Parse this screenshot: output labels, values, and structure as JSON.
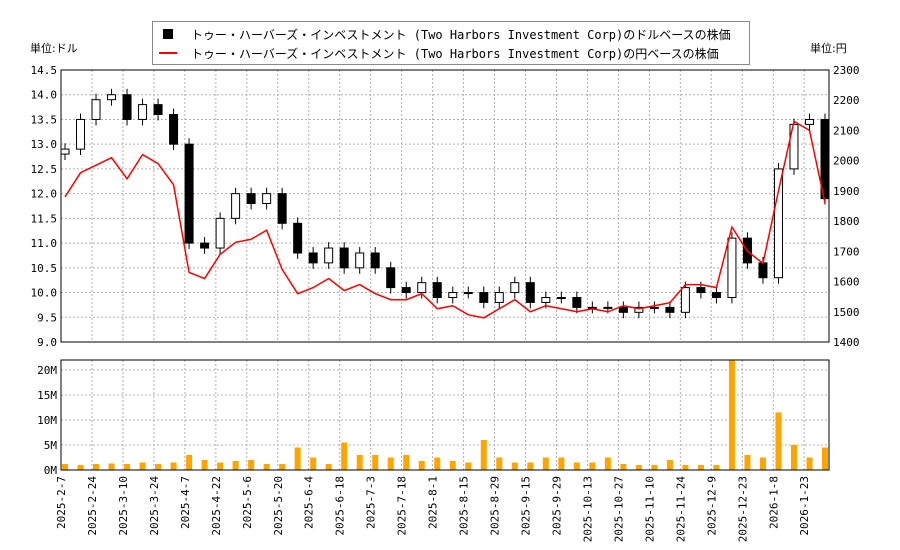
{
  "chart_data": {
    "type": "candlestick+line+bar",
    "legend": {
      "position": "top-center",
      "entries": [
        {
          "label": "トゥー・ハーバーズ・インベストメント (Two Harbors Investment Corp)のドルベースの株価",
          "color": "#000000"
        },
        {
          "label": "トゥー・ハーバーズ・インベストメント (Two Harbors Investment Corp)の円ベースの株価",
          "color": "#ff0000"
        }
      ]
    },
    "left_unit": "単位:ドル",
    "right_unit": "単位:円",
    "y_left": {
      "range": [
        9.0,
        14.5
      ],
      "ticks": [
        "9.0",
        "9.5",
        "10.0",
        "10.5",
        "11.0",
        "11.5",
        "12.0",
        "12.5",
        "13.0",
        "13.5",
        "14.0",
        "14.5"
      ]
    },
    "y_right": {
      "range": [
        1400,
        2300
      ],
      "ticks": [
        "1400",
        "1500",
        "1600",
        "1700",
        "1800",
        "1900",
        "2000",
        "2100",
        "2200",
        "2300"
      ]
    },
    "volume_axis": {
      "range": [
        0,
        22
      ],
      "ticks": [
        "0M",
        "5M",
        "10M",
        "15M",
        "20M"
      ]
    },
    "x_ticks": [
      "2025-2-7",
      "2025-2-24",
      "2025-3-10",
      "2025-3-24",
      "2025-4-7",
      "2025-4-22",
      "2025-5-6",
      "2025-5-20",
      "2025-6-4",
      "2025-6-18",
      "2025-7-3",
      "2025-7-18",
      "2025-8-1",
      "2025-8-15",
      "2025-8-29",
      "2025-9-15",
      "2025-9-29",
      "2025-10-13",
      "2025-10-27",
      "2025-11-10",
      "2025-11-24",
      "2025-12-9",
      "2025-12-23",
      "2026-1-8",
      "2026-1-23"
    ],
    "usd_close": [
      12.9,
      13.5,
      13.9,
      14.0,
      13.5,
      13.8,
      13.6,
      13.0,
      11.0,
      10.9,
      11.5,
      12.0,
      11.8,
      12.0,
      11.4,
      10.8,
      10.6,
      10.9,
      10.5,
      10.8,
      10.5,
      10.1,
      10.0,
      10.2,
      9.9,
      10.0,
      10.0,
      9.8,
      10.0,
      10.2,
      9.8,
      9.9,
      9.9,
      9.7,
      9.7,
      9.7,
      9.6,
      9.7,
      9.7,
      9.6,
      10.1,
      10.0,
      9.9,
      11.1,
      10.6,
      10.3,
      12.5,
      13.4,
      13.5,
      11.9
    ],
    "jpy_close": [
      1880,
      1960,
      1985,
      2010,
      1940,
      2020,
      1990,
      1920,
      1630,
      1610,
      1690,
      1730,
      1740,
      1770,
      1640,
      1560,
      1580,
      1610,
      1570,
      1590,
      1560,
      1540,
      1540,
      1560,
      1510,
      1520,
      1490,
      1480,
      1510,
      1540,
      1500,
      1520,
      1510,
      1500,
      1510,
      1500,
      1520,
      1510,
      1520,
      1530,
      1590,
      1590,
      1580,
      1780,
      1700,
      1660,
      1900,
      2130,
      2100,
      1860
    ],
    "volume_m": [
      1.2,
      1,
      1.2,
      1.3,
      1.2,
      1.5,
      1.2,
      1.5,
      3,
      2,
      1.5,
      1.8,
      2,
      1.2,
      1.2,
      4.5,
      2.5,
      1.2,
      5.5,
      3,
      3,
      2.5,
      3,
      1.8,
      2.5,
      1.8,
      1.5,
      6,
      2.5,
      1.5,
      1.5,
      2.5,
      2.5,
      1.5,
      1.5,
      2.5,
      1.2,
      1,
      1,
      2,
      1,
      1,
      1,
      22,
      3,
      2.5,
      11.5,
      5,
      2.5,
      4.5
    ],
    "colors": {
      "candle": "#000000",
      "yen_line": "#ff0000",
      "volume": "#ffa500",
      "grid": "#b0b0b0"
    }
  }
}
